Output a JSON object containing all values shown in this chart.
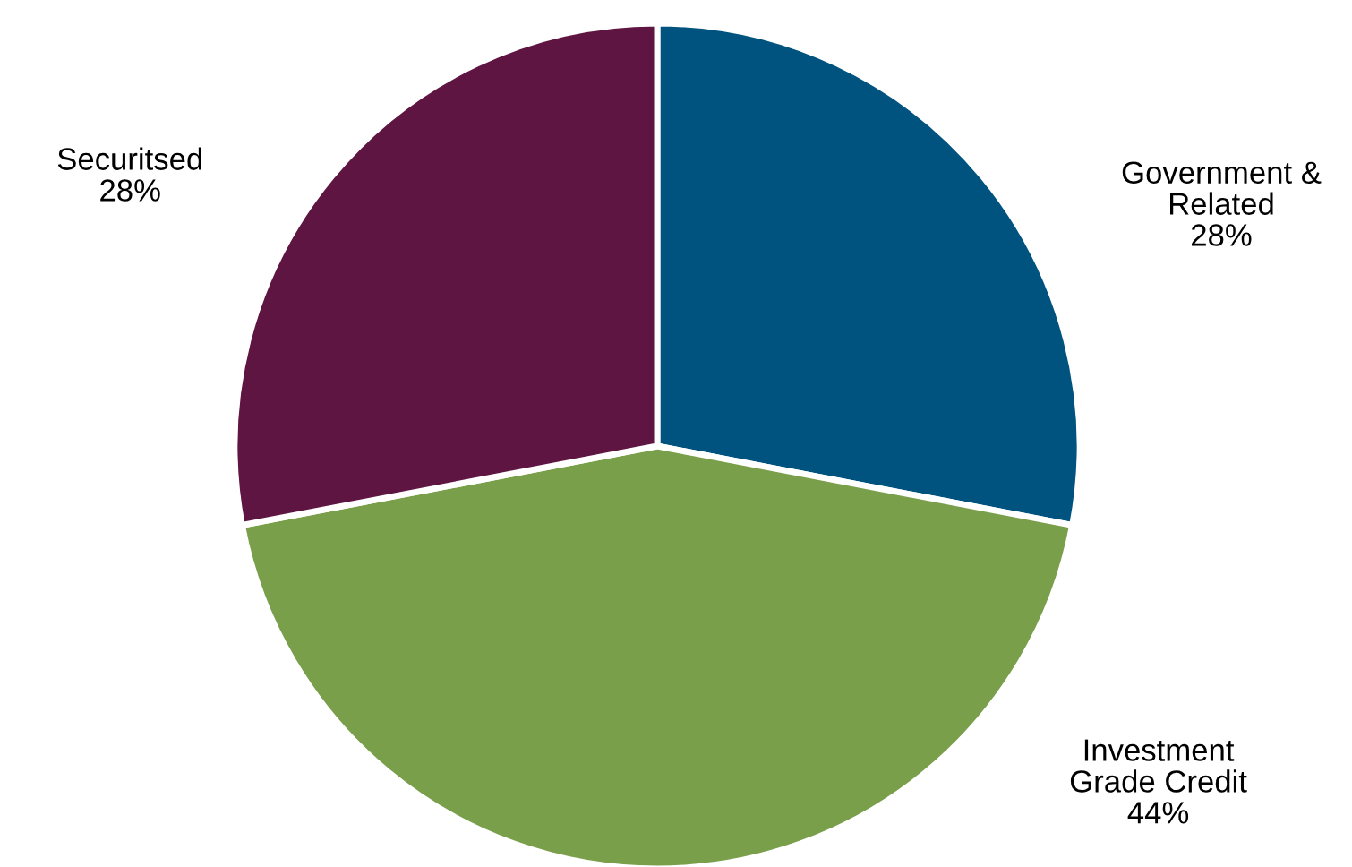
{
  "chart_data": {
    "type": "pie",
    "categories": [
      "Government &\nRelated",
      "Investment\nGrade Credit",
      "Securitsed"
    ],
    "values": [
      28,
      44,
      28
    ],
    "colors": [
      "#00537f",
      "#7a9f4b",
      "#5f1541"
    ],
    "value_labels": [
      "28%",
      "44%",
      "28%"
    ],
    "legend": false
  }
}
